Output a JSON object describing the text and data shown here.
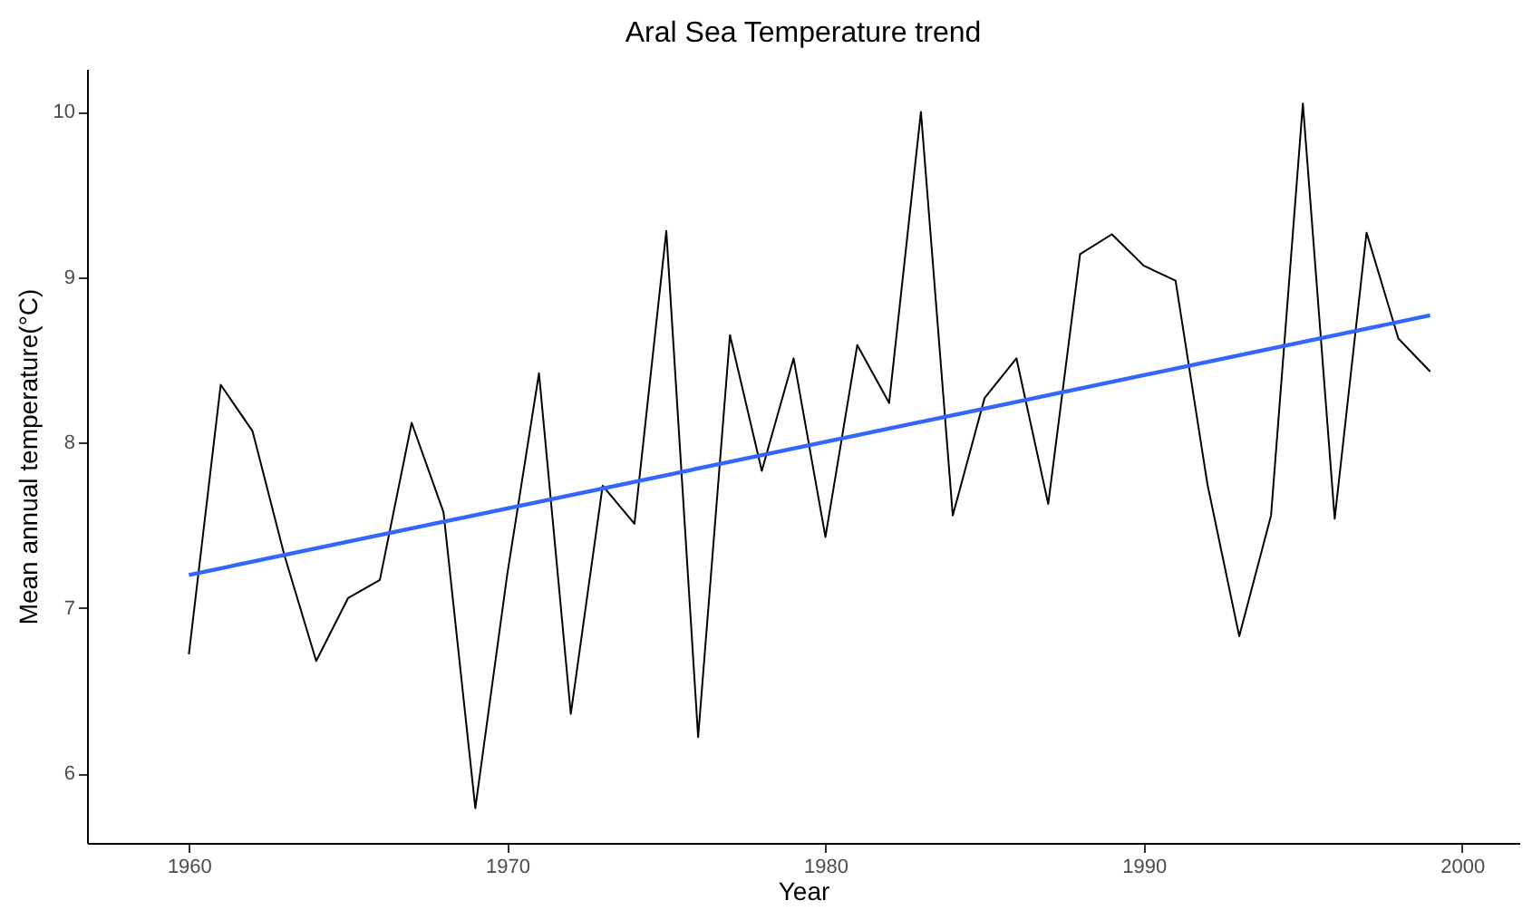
{
  "chart_data": {
    "type": "line",
    "title": "Aral Sea Temperature trend",
    "xlabel": "Year",
    "ylabel": "Mean annual temperature(°C)",
    "xlim": [
      1956.8,
      2001.8
    ],
    "xticks": [
      1960,
      1970,
      1980,
      1990,
      2000
    ],
    "ylim": [
      5.58,
      10.26
    ],
    "yticks": [
      6,
      7,
      8,
      9,
      10
    ],
    "grid": false,
    "x": [
      1960,
      1961,
      1962,
      1963,
      1964,
      1965,
      1966,
      1967,
      1968,
      1969,
      1970,
      1971,
      1972,
      1973,
      1974,
      1975,
      1976,
      1977,
      1978,
      1979,
      1980,
      1981,
      1982,
      1983,
      1984,
      1985,
      1986,
      1987,
      1988,
      1989,
      1990,
      1991,
      1992,
      1993,
      1994,
      1995,
      1996,
      1997,
      1998,
      1999
    ],
    "series": [
      {
        "color": "#000000",
        "values": [
          6.72,
          8.35,
          8.07,
          7.32,
          6.68,
          7.06,
          7.17,
          8.12,
          7.58,
          5.79,
          7.2,
          8.42,
          6.36,
          7.74,
          7.51,
          9.28,
          6.22,
          8.65,
          7.83,
          8.51,
          7.43,
          8.59,
          8.24,
          10.0,
          7.56,
          8.27,
          8.51,
          7.63,
          9.14,
          9.26,
          9.07,
          8.98,
          7.75,
          6.83,
          7.56,
          10.05,
          7.54,
          9.27,
          8.63,
          8.43
        ]
      },
      {
        "type": "line",
        "color": "#3366ff",
        "x": [
          1960,
          1999
        ],
        "values": [
          7.2,
          8.77
        ]
      }
    ]
  }
}
